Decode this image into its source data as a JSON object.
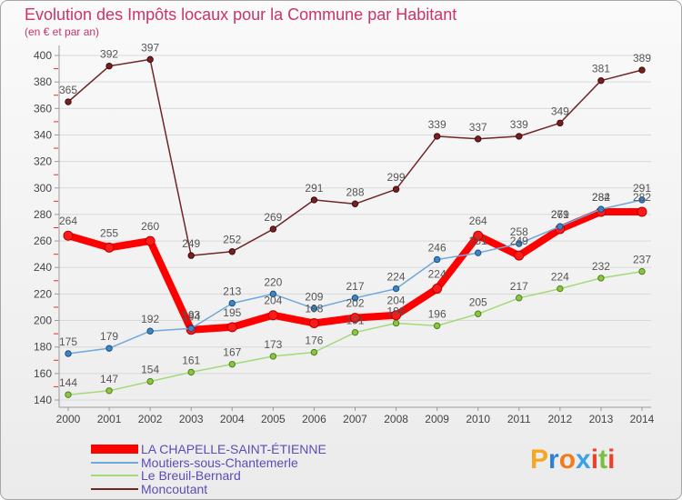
{
  "chart_data": {
    "type": "line",
    "title": "Evolution des Impôts locaux pour la Commune par Habitant",
    "subtitle": "(en € et par an)",
    "x": [
      2000,
      2001,
      2002,
      2003,
      2004,
      2005,
      2006,
      2007,
      2008,
      2009,
      2010,
      2011,
      2012,
      2013,
      2014
    ],
    "ylim": [
      140,
      400
    ],
    "yticks": [
      140,
      160,
      180,
      200,
      220,
      240,
      260,
      280,
      300,
      320,
      340,
      360,
      380,
      400
    ],
    "grid": true,
    "data_labels": true,
    "legend_position": "bottom-left",
    "series": [
      {
        "name": "LA CHAPELLE-SAINT-ÉTIENNE",
        "color": "#ff0000",
        "marker_color": "#ff1a1a",
        "marker_stroke": "#b30000",
        "highlighted": true,
        "values": [
          264,
          255,
          260,
          193,
          195,
          204,
          198,
          202,
          204,
          224,
          264,
          249,
          269,
          282,
          282
        ]
      },
      {
        "name": "Moutiers-sous-Chantemerle",
        "color": "#6fa8dc",
        "marker_color": "#3d85c6",
        "marker_stroke": "#1c4f80",
        "highlighted": false,
        "values": [
          175,
          179,
          192,
          194,
          213,
          220,
          209,
          217,
          224,
          246,
          251,
          258,
          271,
          284,
          291
        ]
      },
      {
        "name": "Le Breuil-Bernard",
        "color": "#a3d977",
        "marker_color": "#8cc63f",
        "marker_stroke": "#4f7f1f",
        "highlighted": false,
        "values": [
          144,
          147,
          154,
          161,
          167,
          173,
          176,
          191,
          198,
          196,
          205,
          217,
          224,
          232,
          237
        ]
      },
      {
        "name": "Moncoutant",
        "color": "#6e2626",
        "marker_color": "#7a1f1f",
        "marker_stroke": "#3d0b0b",
        "highlighted": false,
        "values": [
          365,
          392,
          397,
          249,
          252,
          269,
          291,
          288,
          299,
          339,
          337,
          339,
          349,
          381,
          389
        ]
      }
    ]
  },
  "logo": {
    "text": "Proxiti",
    "letter_colors": [
      "#f5a623",
      "#2f7fd8",
      "#f07c1c",
      "#39a3e6",
      "#e8412c",
      "#79bf3f",
      "#e8412c"
    ]
  }
}
